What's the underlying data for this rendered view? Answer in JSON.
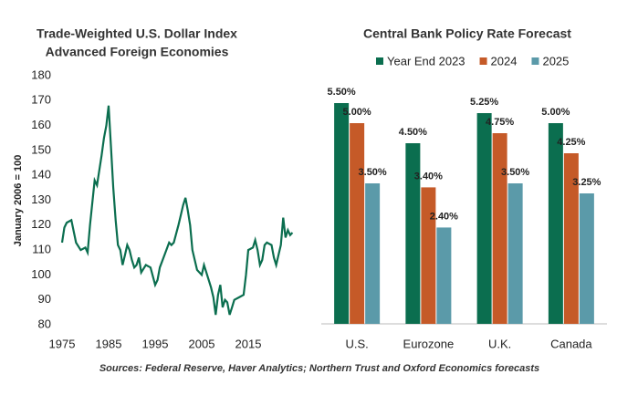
{
  "chart_data": [
    {
      "type": "line",
      "title": "Trade-Weighted U.S. Dollar Index",
      "subtitle": "Advanced Foreign Economies",
      "y_label": "January 2006 = 100",
      "x": [
        1975,
        1975.5,
        1976,
        1977,
        1978,
        1979,
        1980,
        1980.5,
        1981,
        1982,
        1982.5,
        1983,
        1983.5,
        1984,
        1984.5,
        1985,
        1985.5,
        1986,
        1986.5,
        1987,
        1987.5,
        1988,
        1988.5,
        1989,
        1989.5,
        1990,
        1990.5,
        1991,
        1991.5,
        1992,
        1993,
        1994,
        1995,
        1995.5,
        1996,
        1997,
        1998,
        1998.5,
        1999,
        2000,
        2000.5,
        2001,
        2001.5,
        2002,
        2002.5,
        2003,
        2004,
        2005,
        2005.5,
        2006,
        2007,
        2007.5,
        2008,
        2008.5,
        2009,
        2009.5,
        2010,
        2010.5,
        2011,
        2011.5,
        2012,
        2013,
        2014,
        2014.5,
        2015,
        2016,
        2016.5,
        2017,
        2017.5,
        2018,
        2018.5,
        2019,
        2020,
        2020.5,
        2021,
        2021.5,
        2022,
        2022.5,
        2023,
        2023.5,
        2024,
        2024.5
      ],
      "series": [
        {
          "name": "Trade-Weighted U.S. Dollar Index",
          "color": "#0b6e4f",
          "values": [
            113,
            119,
            121,
            122,
            113,
            110,
            111,
            109,
            120,
            138,
            136,
            142,
            148,
            155,
            160,
            168,
            152,
            135,
            122,
            112,
            110,
            104,
            108,
            112,
            110,
            106,
            103,
            104,
            107,
            101,
            104,
            103,
            96,
            98,
            103,
            108,
            113,
            112,
            113,
            120,
            124,
            128,
            131,
            126,
            120,
            110,
            102,
            100,
            104,
            101,
            95,
            91,
            84,
            92,
            96,
            87,
            90,
            89,
            84,
            87,
            90,
            91,
            92,
            100,
            110,
            111,
            114,
            110,
            104,
            106,
            112,
            113,
            112,
            107,
            104,
            108,
            112,
            123,
            115,
            118,
            116,
            117
          ]
        }
      ],
      "xlim": [
        1975,
        2025
      ],
      "xticks": [
        1975,
        1985,
        1995,
        2005,
        2015
      ],
      "ylim": [
        80,
        180
      ],
      "yticks": [
        80,
        90,
        100,
        110,
        120,
        130,
        140,
        150,
        160,
        170,
        180
      ]
    },
    {
      "type": "bar",
      "title": "Central Bank Policy Rate Forecast",
      "categories": [
        "U.S.",
        "Eurozone",
        "U.K.",
        "Canada"
      ],
      "series": [
        {
          "name": "Year End 2023",
          "color": "#0b6e4f",
          "values": [
            5.5,
            4.5,
            5.25,
            5.0
          ],
          "value_labels": [
            "5.50%",
            "4.50%",
            "5.25%",
            "5.00%"
          ]
        },
        {
          "name": "2024",
          "color": "#c55a28",
          "values": [
            5.0,
            3.4,
            4.75,
            4.25
          ],
          "value_labels": [
            "5.00%",
            "3.40%",
            "4.75%",
            "4.25%"
          ]
        },
        {
          "name": "2025",
          "color": "#5b9aa9",
          "values": [
            3.5,
            2.4,
            3.5,
            3.25
          ],
          "value_labels": [
            "3.50%",
            "2.40%",
            "3.50%",
            "3.25%"
          ]
        }
      ],
      "ylim": [
        0,
        5.5
      ]
    }
  ],
  "source": "Sources: Federal Reserve, Haver Analytics; Northern Trust and Oxford Economics forecasts"
}
